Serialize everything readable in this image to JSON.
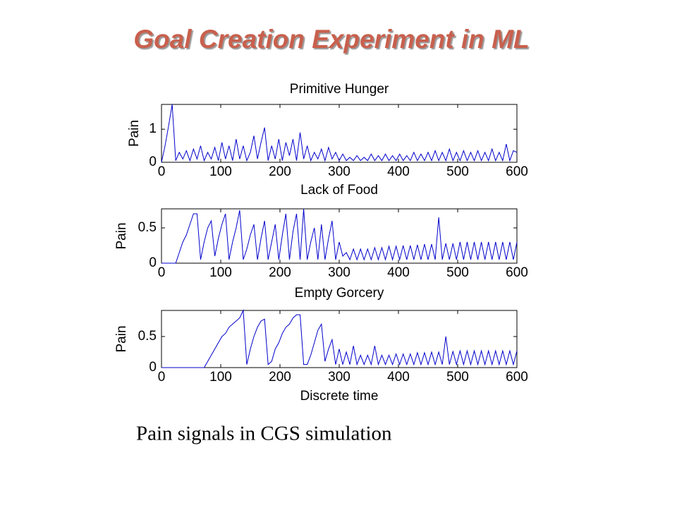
{
  "title": "Goal Creation Experiment in ML",
  "caption": "Pain signals in CGS simulation",
  "chart_data": [
    {
      "type": "line",
      "title": "Primitive Hunger",
      "ylabel": "Pain",
      "color": "#0000cc",
      "x": [
        0,
        6,
        12,
        18,
        24,
        30,
        36,
        42,
        48,
        54,
        60,
        66,
        72,
        78,
        84,
        90,
        96,
        102,
        108,
        114,
        120,
        126,
        132,
        138,
        144,
        150,
        156,
        162,
        168,
        174,
        180,
        186,
        192,
        198,
        204,
        210,
        216,
        222,
        228,
        234,
        240,
        246,
        252,
        258,
        264,
        270,
        276,
        282,
        288,
        294,
        300,
        306,
        312,
        318,
        324,
        330,
        336,
        342,
        348,
        354,
        360,
        366,
        372,
        378,
        384,
        390,
        396,
        402,
        408,
        414,
        420,
        426,
        432,
        438,
        444,
        450,
        456,
        462,
        468,
        474,
        480,
        486,
        492,
        498,
        504,
        510,
        516,
        522,
        528,
        534,
        540,
        546,
        552,
        558,
        564,
        570,
        576,
        582,
        588,
        594,
        600
      ],
      "values": [
        0,
        0.5,
        1.1,
        1.75,
        0.05,
        0.3,
        0.1,
        0.35,
        0.05,
        0.4,
        0.1,
        0.5,
        0.05,
        0.3,
        0.1,
        0.45,
        0.05,
        0.6,
        0.1,
        0.5,
        0.05,
        0.7,
        0.1,
        0.5,
        0.05,
        0.3,
        0.8,
        0.1,
        0.6,
        1.05,
        0.05,
        0.5,
        0.1,
        0.7,
        0.05,
        0.6,
        0.2,
        0.7,
        0.05,
        0.9,
        0.1,
        0.5,
        0.05,
        0.3,
        0.1,
        0.4,
        0.05,
        0.45,
        0.1,
        0.3,
        0.05,
        0.25,
        0.05,
        0.15,
        0.05,
        0.2,
        0.05,
        0.15,
        0.05,
        0.25,
        0.05,
        0.2,
        0.05,
        0.25,
        0.05,
        0.2,
        0.05,
        0.25,
        0.05,
        0.2,
        0.05,
        0.3,
        0.05,
        0.25,
        0.05,
        0.3,
        0.05,
        0.35,
        0.05,
        0.3,
        0.05,
        0.4,
        0.05,
        0.3,
        0.05,
        0.35,
        0.05,
        0.3,
        0.05,
        0.35,
        0.05,
        0.3,
        0.05,
        0.4,
        0.05,
        0.3,
        0.05,
        0.55,
        0.05,
        0.35,
        0.3
      ],
      "xlim": [
        0,
        600
      ],
      "xticks": [
        0,
        100,
        200,
        300,
        400,
        500,
        600
      ],
      "ylim": [
        0,
        1.75
      ],
      "yticks": [
        0,
        1
      ]
    },
    {
      "type": "line",
      "title": "Lack of Food",
      "ylabel": "Pain",
      "color": "#0000cc",
      "x": [
        0,
        6,
        12,
        18,
        24,
        30,
        36,
        42,
        48,
        54,
        60,
        66,
        72,
        78,
        84,
        90,
        96,
        102,
        108,
        114,
        120,
        126,
        132,
        138,
        144,
        150,
        156,
        162,
        168,
        174,
        180,
        186,
        192,
        198,
        204,
        210,
        216,
        222,
        228,
        234,
        240,
        246,
        252,
        258,
        264,
        270,
        276,
        282,
        288,
        294,
        300,
        306,
        312,
        318,
        324,
        330,
        336,
        342,
        348,
        354,
        360,
        366,
        372,
        378,
        384,
        390,
        396,
        402,
        408,
        414,
        420,
        426,
        432,
        438,
        444,
        450,
        456,
        462,
        468,
        474,
        480,
        486,
        492,
        498,
        504,
        510,
        516,
        522,
        528,
        534,
        540,
        546,
        552,
        558,
        564,
        570,
        576,
        582,
        588,
        594,
        600
      ],
      "values": [
        0,
        0,
        0,
        0,
        0,
        0.15,
        0.3,
        0.4,
        0.55,
        0.7,
        0.7,
        0.05,
        0.3,
        0.5,
        0.6,
        0.1,
        0.35,
        0.55,
        0.7,
        0.05,
        0.3,
        0.5,
        0.75,
        0.05,
        0.2,
        0.4,
        0.55,
        0.05,
        0.35,
        0.6,
        0.05,
        0.3,
        0.55,
        0.05,
        0.4,
        0.7,
        0.05,
        0.45,
        0.7,
        0.05,
        0.77,
        0.05,
        0.3,
        0.5,
        0.05,
        0.55,
        0.05,
        0.35,
        0.6,
        0.05,
        0.3,
        0.1,
        0.15,
        0.05,
        0.2,
        0.05,
        0.2,
        0.05,
        0.2,
        0.05,
        0.22,
        0.05,
        0.22,
        0.05,
        0.24,
        0.05,
        0.24,
        0.05,
        0.25,
        0.05,
        0.25,
        0.05,
        0.26,
        0.05,
        0.27,
        0.05,
        0.27,
        0.05,
        0.65,
        0.05,
        0.28,
        0.05,
        0.28,
        0.05,
        0.3,
        0.05,
        0.3,
        0.05,
        0.3,
        0.05,
        0.3,
        0.05,
        0.3,
        0.05,
        0.3,
        0.05,
        0.3,
        0.05,
        0.3,
        0.05,
        0.3
      ],
      "xlim": [
        0,
        600
      ],
      "xticks": [
        0,
        100,
        200,
        300,
        400,
        500,
        600
      ],
      "ylim": [
        0,
        0.77
      ],
      "yticks": [
        0,
        0.5
      ]
    },
    {
      "type": "line",
      "title": "Empty Gorcery",
      "xlabel": "Discrete time",
      "ylabel": "Pain",
      "color": "#0000cc",
      "x": [
        0,
        6,
        12,
        18,
        24,
        30,
        36,
        42,
        48,
        54,
        60,
        66,
        72,
        78,
        84,
        90,
        96,
        102,
        108,
        114,
        120,
        126,
        132,
        138,
        144,
        150,
        156,
        162,
        168,
        174,
        180,
        186,
        192,
        198,
        204,
        210,
        216,
        222,
        228,
        234,
        240,
        246,
        252,
        258,
        264,
        270,
        276,
        282,
        288,
        294,
        300,
        306,
        312,
        318,
        324,
        330,
        336,
        342,
        348,
        354,
        360,
        366,
        372,
        378,
        384,
        390,
        396,
        402,
        408,
        414,
        420,
        426,
        432,
        438,
        444,
        450,
        456,
        462,
        468,
        474,
        480,
        486,
        492,
        498,
        504,
        510,
        516,
        522,
        528,
        534,
        540,
        546,
        552,
        558,
        564,
        570,
        576,
        582,
        588,
        594,
        600
      ],
      "values": [
        0,
        0,
        0,
        0,
        0,
        0,
        0,
        0,
        0,
        0,
        0,
        0,
        0,
        0.1,
        0.2,
        0.3,
        0.4,
        0.5,
        0.55,
        0.65,
        0.7,
        0.75,
        0.8,
        0.92,
        0.05,
        0.3,
        0.5,
        0.65,
        0.75,
        0.78,
        0.05,
        0.1,
        0.3,
        0.4,
        0.55,
        0.65,
        0.7,
        0.8,
        0.85,
        0.85,
        0.05,
        0.05,
        0.2,
        0.4,
        0.6,
        0.7,
        0.1,
        0.3,
        0.45,
        0.05,
        0.3,
        0.05,
        0.25,
        0.05,
        0.35,
        0.05,
        0.2,
        0.05,
        0.2,
        0.05,
        0.35,
        0.05,
        0.2,
        0.05,
        0.2,
        0.05,
        0.22,
        0.05,
        0.22,
        0.05,
        0.22,
        0.05,
        0.24,
        0.05,
        0.24,
        0.05,
        0.25,
        0.05,
        0.25,
        0.05,
        0.5,
        0.05,
        0.26,
        0.05,
        0.27,
        0.05,
        0.27,
        0.05,
        0.27,
        0.05,
        0.27,
        0.05,
        0.27,
        0.05,
        0.27,
        0.05,
        0.27,
        0.05,
        0.27,
        0.05,
        0.27
      ],
      "xlim": [
        0,
        600
      ],
      "xticks": [
        0,
        100,
        200,
        300,
        400,
        500,
        600
      ],
      "ylim": [
        0,
        0.92
      ],
      "yticks": [
        0,
        0.5
      ]
    }
  ]
}
